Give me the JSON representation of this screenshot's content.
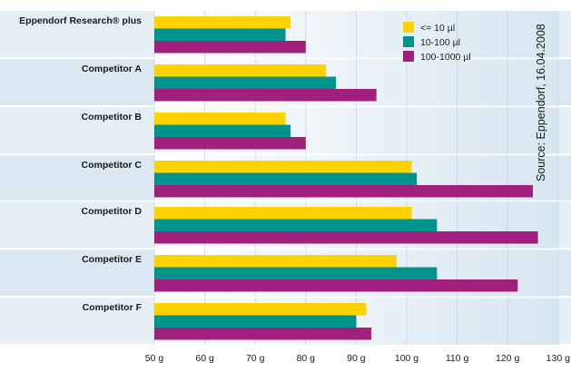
{
  "chart_data": {
    "type": "bar",
    "orientation": "horizontal",
    "categories": [
      "Eppendorf Research® plus",
      "Competitor A",
      "Competitor B",
      "Competitor C",
      "Competitor D",
      "Competitor E",
      "Competitor F"
    ],
    "series": [
      {
        "name": "<= 10 µl",
        "color": "#ffd200",
        "values": [
          77,
          84,
          76,
          101,
          101,
          98,
          92
        ]
      },
      {
        "name": "10-100 µl",
        "color": "#00948c",
        "values": [
          76,
          86,
          77,
          102,
          106,
          106,
          90
        ]
      },
      {
        "name": "100-1000 µl",
        "color": "#a1207d",
        "values": [
          80,
          94,
          80,
          125,
          126,
          122,
          93
        ]
      }
    ],
    "x_ticks": [
      "50 g",
      "60 g",
      "70 g",
      "80 g",
      "90 g",
      "100 g",
      "110 g",
      "120 g",
      "130 g"
    ],
    "xlim": [
      50,
      130
    ],
    "grid": true,
    "legend_position": "top-right",
    "source_note": "Source: Eppendorf, 16.04.2008",
    "background_color": "#dfeaf3"
  }
}
